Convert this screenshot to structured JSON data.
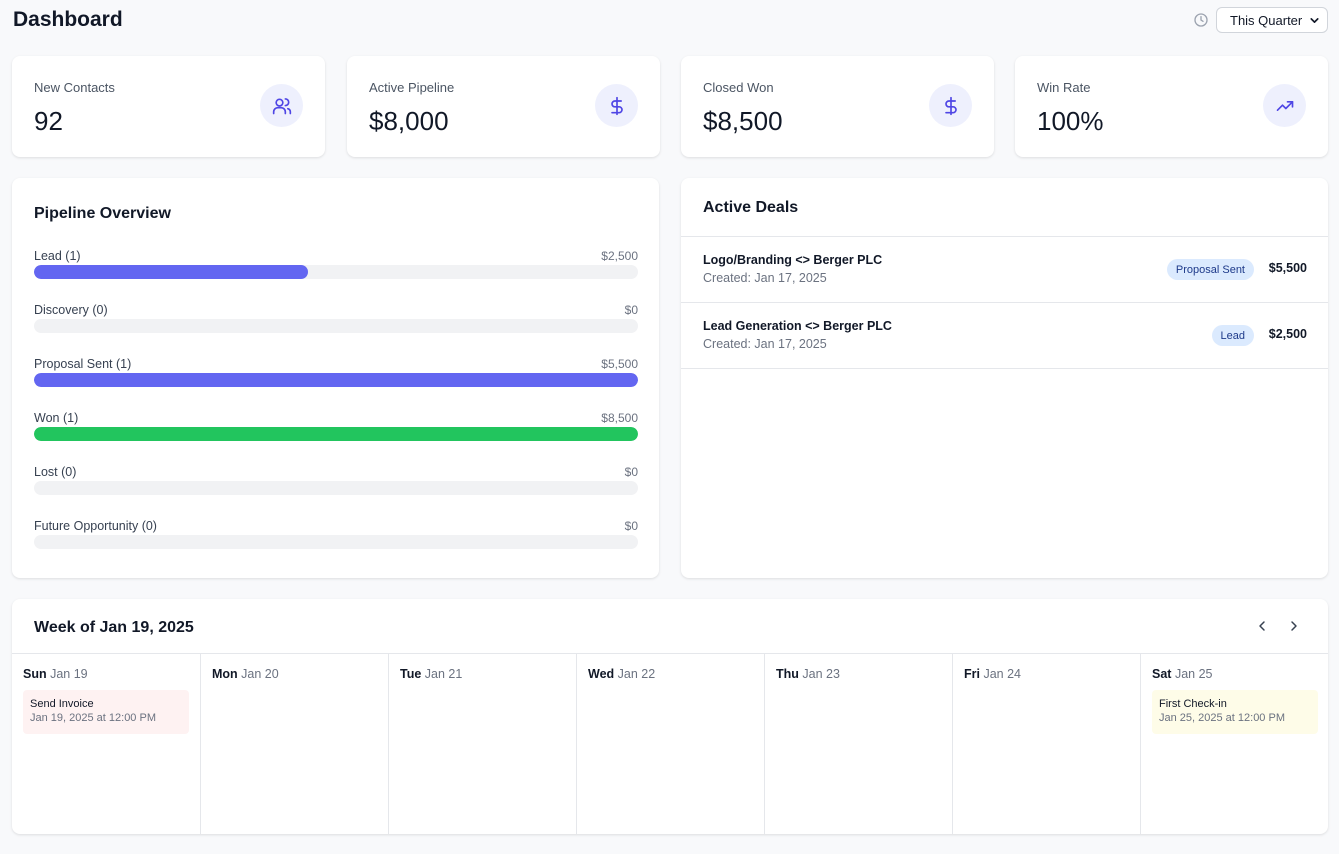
{
  "header": {
    "title": "Dashboard",
    "range_selected": "This Quarter"
  },
  "stats": [
    {
      "label": "New Contacts",
      "value": "92",
      "icon": "users-icon"
    },
    {
      "label": "Active Pipeline",
      "value": "$8,000",
      "icon": "dollar-icon"
    },
    {
      "label": "Closed Won",
      "value": "$8,500",
      "icon": "dollar-icon"
    },
    {
      "label": "Win Rate",
      "value": "100%",
      "icon": "trending-up-icon"
    }
  ],
  "pipeline": {
    "title": "Pipeline Overview",
    "stages": [
      {
        "label": "Lead (1)",
        "amount": "$2,500",
        "fill_fraction": 0.454,
        "color": "#6366f1"
      },
      {
        "label": "Discovery (0)",
        "amount": "$0",
        "fill_fraction": 0,
        "color": "#6366f1"
      },
      {
        "label": "Proposal Sent (1)",
        "amount": "$5,500",
        "fill_fraction": 1.0,
        "color": "#6366f1"
      },
      {
        "label": "Won (1)",
        "amount": "$8,500",
        "fill_fraction": 1.0,
        "color": "#22c55e"
      },
      {
        "label": "Lost (0)",
        "amount": "$0",
        "fill_fraction": 0,
        "color": "#6366f1"
      },
      {
        "label": "Future Opportunity (0)",
        "amount": "$0",
        "fill_fraction": 0,
        "color": "#6366f1"
      }
    ]
  },
  "deals": {
    "title": "Active Deals",
    "items": [
      {
        "name": "Logo/Branding <> Berger PLC",
        "created": "Created: Jan 17, 2025",
        "stage": "Proposal Sent",
        "amount": "$5,500"
      },
      {
        "name": "Lead Generation <> Berger PLC",
        "created": "Created: Jan 17, 2025",
        "stage": "Lead",
        "amount": "$2,500"
      }
    ]
  },
  "calendar": {
    "title": "Week of Jan 19, 2025",
    "days": [
      {
        "name": "Sun",
        "date": "Jan 19",
        "events": [
          {
            "title": "Send Invoice",
            "time": "Jan 19, 2025 at 12:00 PM",
            "color": "#fef2f2"
          }
        ]
      },
      {
        "name": "Mon",
        "date": "Jan 20",
        "events": []
      },
      {
        "name": "Tue",
        "date": "Jan 21",
        "events": []
      },
      {
        "name": "Wed",
        "date": "Jan 22",
        "events": []
      },
      {
        "name": "Thu",
        "date": "Jan 23",
        "events": []
      },
      {
        "name": "Fri",
        "date": "Jan 24",
        "events": []
      },
      {
        "name": "Sat",
        "date": "Jan 25",
        "events": [
          {
            "title": "First Check-in",
            "time": "Jan 25, 2025 at 12:00 PM",
            "color": "#fefce8"
          }
        ]
      }
    ]
  },
  "colors": {
    "accent": "#6366f1",
    "success": "#22c55e",
    "badge_bg": "#dbeafe"
  }
}
